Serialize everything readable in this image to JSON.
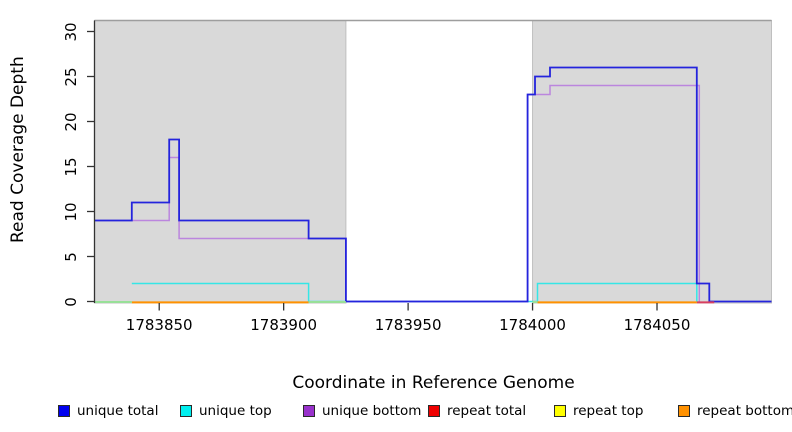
{
  "chart_data": {
    "type": "line",
    "step": true,
    "title": "",
    "xlabel": "Coordinate in Reference Genome",
    "ylabel": "Read Coverage Depth",
    "xlim": [
      1783824,
      1784096
    ],
    "ylim": [
      0,
      31
    ],
    "grid": false,
    "legend_position": "bottom",
    "x_ticks": [
      1783850,
      1783900,
      1783950,
      1784000,
      1784050
    ],
    "y_ticks": [
      0,
      5,
      10,
      15,
      20,
      25,
      30
    ],
    "shaded_regions": [
      {
        "x1": 1783824,
        "x2": 1783925,
        "fill": "#d9d9d9",
        "border": "#bfbfbf"
      },
      {
        "x1": 1784000,
        "x2": 1784096,
        "fill": "#d9d9d9",
        "border": "#bfbfbf"
      }
    ],
    "region_top_line_color": "#9e9e9e",
    "series": [
      {
        "name": "unique total",
        "legend_color": "#0000ee",
        "line_color": "#2424dd",
        "width": 1.8,
        "points": [
          [
            1783824,
            9
          ],
          [
            1783839,
            11
          ],
          [
            1783854,
            18
          ],
          [
            1783858,
            9
          ],
          [
            1783910,
            7
          ],
          [
            1783925,
            0
          ],
          [
            1783998,
            23
          ],
          [
            1784001,
            25
          ],
          [
            1784007,
            26
          ],
          [
            1784066,
            2
          ],
          [
            1784071,
            0
          ]
        ],
        "end": 1784096
      },
      {
        "name": "unique top",
        "legend_color": "#00eeee",
        "line_color": "#35e6e6",
        "width": 1.5,
        "points": [
          [
            1783839,
            2
          ],
          [
            1783910,
            0
          ],
          [
            1784002,
            2
          ],
          [
            1784066,
            0
          ]
        ],
        "end": 1784066
      },
      {
        "name": "unique bottom",
        "legend_color": "#9932cc",
        "line_color": "#bb86de",
        "width": 1.5,
        "points": [
          [
            1783824,
            9
          ],
          [
            1783854,
            16
          ],
          [
            1783858,
            7
          ],
          [
            1783925,
            0
          ],
          [
            1783998,
            23
          ],
          [
            1784007,
            24
          ],
          [
            1784067,
            0
          ]
        ],
        "end": 1784067
      },
      {
        "name": "repeat total",
        "legend_color": "#ee0000",
        "line_color": "#d84060",
        "width": 2,
        "zero_segments": [
          [
            1784066,
            1784073
          ]
        ]
      },
      {
        "name": "repeat top",
        "legend_color": "#ffff00",
        "line_color": "#ffff00",
        "width": 2,
        "zero_segments": []
      },
      {
        "name": "repeat bottom",
        "legend_color": "#ff9100",
        "line_color": "#ff9100",
        "width": 2,
        "zero_segments": [
          [
            1783839,
            1783910
          ],
          [
            1784002,
            1784066
          ]
        ]
      }
    ],
    "overlap_blend_segments": {
      "color": "#98e098",
      "segments": [
        [
          1783824,
          1783839
        ],
        [
          1783910,
          1783925
        ],
        [
          1784000,
          1784002
        ]
      ]
    }
  },
  "axes": {
    "x_title": "Coordinate in Reference Genome",
    "y_title": "Read Coverage Depth",
    "axis_color": "#333333"
  },
  "legend": {
    "items": [
      {
        "label": "unique total",
        "color": "#0000ee"
      },
      {
        "label": "unique top",
        "color": "#00eeee"
      },
      {
        "label": "unique bottom",
        "color": "#9932cc"
      },
      {
        "label": "repeat total",
        "color": "#ee0000"
      },
      {
        "label": "repeat top",
        "color": "#ffff00"
      },
      {
        "label": "repeat bottom",
        "color": "#ff9100"
      }
    ]
  }
}
